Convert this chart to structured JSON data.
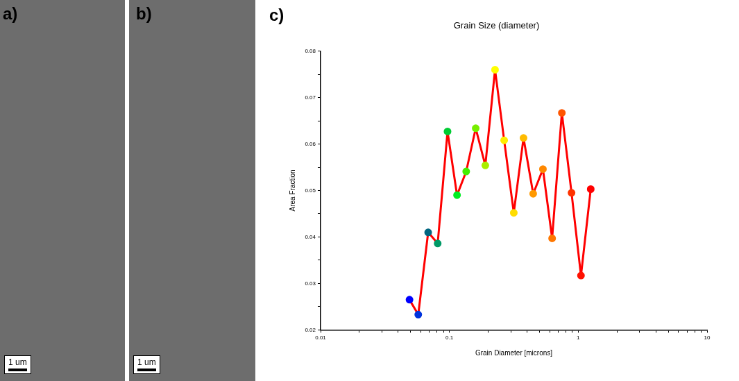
{
  "chart_data": {
    "type": "line",
    "title": "Grain Size (diameter)",
    "xlabel": "Grain Diameter [microns]",
    "ylabel": "Area Fraction",
    "x": [
      0.049,
      0.0573,
      0.0684,
      0.0811,
      0.0967,
      0.1146,
      0.135,
      0.16,
      0.19,
      0.226,
      0.266,
      0.316,
      0.376,
      0.447,
      0.532,
      0.627,
      0.746,
      0.887,
      1.05,
      1.25
    ],
    "series": [
      {
        "color": "#ff0000",
        "colors": [
          "#0000ff",
          "#0033dd",
          "#006680",
          "#009966",
          "#00cc33",
          "#00ee22",
          "#44ee00",
          "#77ee00",
          "#aaee00",
          "#ffff00",
          "#ffee00",
          "#ffdd00",
          "#ffbb00",
          "#ff9900",
          "#ff8800",
          "#ff7700",
          "#ff5500",
          "#ff3300",
          "#ff1100",
          "#ff0000"
        ],
        "values": [
          0.0265,
          0.0233,
          0.041,
          0.0386,
          0.0627,
          0.049,
          0.0541,
          0.0634,
          0.0554,
          0.076,
          0.0608,
          0.0452,
          0.0613,
          0.0493,
          0.0546,
          0.0397,
          0.0667,
          0.0495,
          0.0317,
          0.0503
        ]
      }
    ],
    "xlim": [
      0.01,
      10
    ],
    "ylim": [
      0.02,
      0.08
    ],
    "log": "x",
    "grid": false,
    "legend": false,
    "marker": "circle",
    "line_style": "solid",
    "xticks": [
      0.01,
      {
        "value": 0.02,
        "label": null
      },
      {
        "value": 0.03,
        "label": null
      },
      {
        "value": 0.04,
        "label": null
      },
      {
        "value": 0.05,
        "label": null
      },
      {
        "value": 0.06,
        "label": null
      },
      {
        "value": 0.07,
        "label": null
      },
      {
        "value": 0.08,
        "label": null
      },
      {
        "value": 0.09,
        "label": null
      },
      0.1,
      {
        "value": 0.2,
        "label": null
      },
      {
        "value": 0.3,
        "label": null
      },
      {
        "value": 0.4,
        "label": null
      },
      {
        "value": 0.5,
        "label": null
      },
      {
        "value": 0.6,
        "label": null
      },
      {
        "value": 0.7,
        "label": null
      },
      {
        "value": 0.8,
        "label": null
      },
      {
        "value": 0.9,
        "label": null
      },
      1,
      {
        "value": 2,
        "label": null
      },
      {
        "value": 3,
        "label": null
      },
      {
        "value": 4,
        "label": null
      },
      {
        "value": 5,
        "label": null
      },
      {
        "value": 6,
        "label": null
      },
      {
        "value": 7,
        "label": null
      },
      {
        "value": 8,
        "label": null
      },
      {
        "value": 9,
        "label": null
      },
      10
    ],
    "yticks": [
      0.02,
      {
        "value": 0.025,
        "label": null
      },
      0.03,
      {
        "value": 0.035,
        "label": null
      },
      0.04,
      {
        "value": 0.045,
        "label": null
      },
      0.05,
      {
        "value": 0.055,
        "label": null
      },
      0.06,
      {
        "value": 0.065,
        "label": null
      },
      0.07,
      {
        "value": 0.075,
        "label": null
      },
      0.08
    ],
    "annotations": [
      "a)",
      "b)",
      "c)",
      "1 um",
      "1 um"
    ]
  }
}
